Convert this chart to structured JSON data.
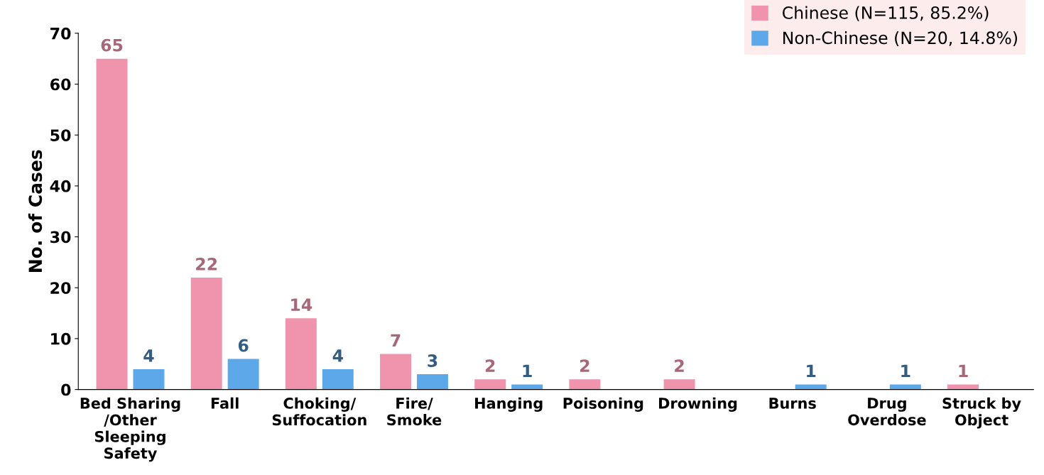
{
  "chart_data": {
    "type": "bar",
    "ylabel": "No. of Cases",
    "categories": [
      "Bed Sharing\n/Other\nSleeping\nSafety",
      "Fall",
      "Choking/\nSuffocation",
      "Fire/\nSmoke",
      "Hanging",
      "Poisoning",
      "Drowning",
      "Burns",
      "Drug\nOverdose",
      "Struck by\nObject"
    ],
    "series": [
      {
        "name": "Chinese (N=115, 85.2%)",
        "color": "#f093ac",
        "values": [
          65,
          22,
          14,
          7,
          2,
          2,
          2,
          null,
          null,
          1
        ]
      },
      {
        "name": "Non-Chinese (N=20, 14.8%)",
        "color": "#5ca8e8",
        "values": [
          4,
          6,
          4,
          3,
          1,
          null,
          null,
          1,
          1,
          null
        ]
      }
    ],
    "ylim": [
      0,
      70
    ],
    "yticks": [
      0,
      10,
      20,
      30,
      40,
      50,
      60,
      70
    ],
    "data_labels": true,
    "grid": false,
    "legend": "top right"
  }
}
